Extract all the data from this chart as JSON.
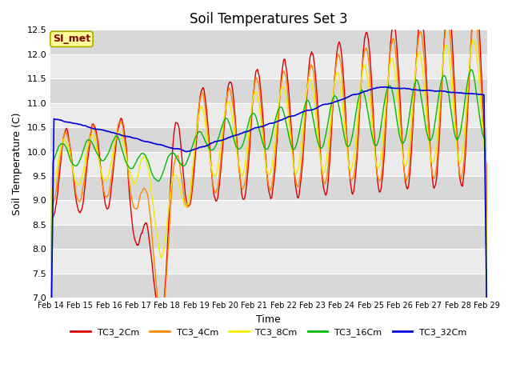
{
  "title": "Soil Temperatures Set 3",
  "xlabel": "Time",
  "ylabel": "Soil Temperature (C)",
  "ylim": [
    7.0,
    12.5
  ],
  "yticks": [
    7.0,
    7.5,
    8.0,
    8.5,
    9.0,
    9.5,
    10.0,
    10.5,
    11.0,
    11.5,
    12.0,
    12.5
  ],
  "xtick_labels": [
    "Feb 14",
    "Feb 15",
    "Feb 16",
    "Feb 17",
    "Feb 18",
    "Feb 19",
    "Feb 20",
    "Feb 21",
    "Feb 22",
    "Feb 23",
    "Feb 24",
    "Feb 25",
    "Feb 26",
    "Feb 27",
    "Feb 28",
    "Feb 29"
  ],
  "colors": {
    "TC3_2Cm": "#dd0000",
    "TC3_4Cm": "#ff8800",
    "TC3_8Cm": "#eeee00",
    "TC3_16Cm": "#00bb00",
    "TC3_32Cm": "#0000dd"
  },
  "legend_labels": [
    "TC3_2Cm",
    "TC3_4Cm",
    "TC3_8Cm",
    "TC3_16Cm",
    "TC3_32Cm"
  ],
  "annotation_text": "SI_met",
  "annotation_color": "#880000",
  "annotation_bg": "#ffff99",
  "annotation_border": "#aaaa00",
  "fig_bg": "#ffffff",
  "plot_bg_light": "#ebebeb",
  "plot_bg_dark": "#d8d8d8",
  "grid_color": "#ffffff",
  "title_fontsize": 12,
  "n_days": 16
}
